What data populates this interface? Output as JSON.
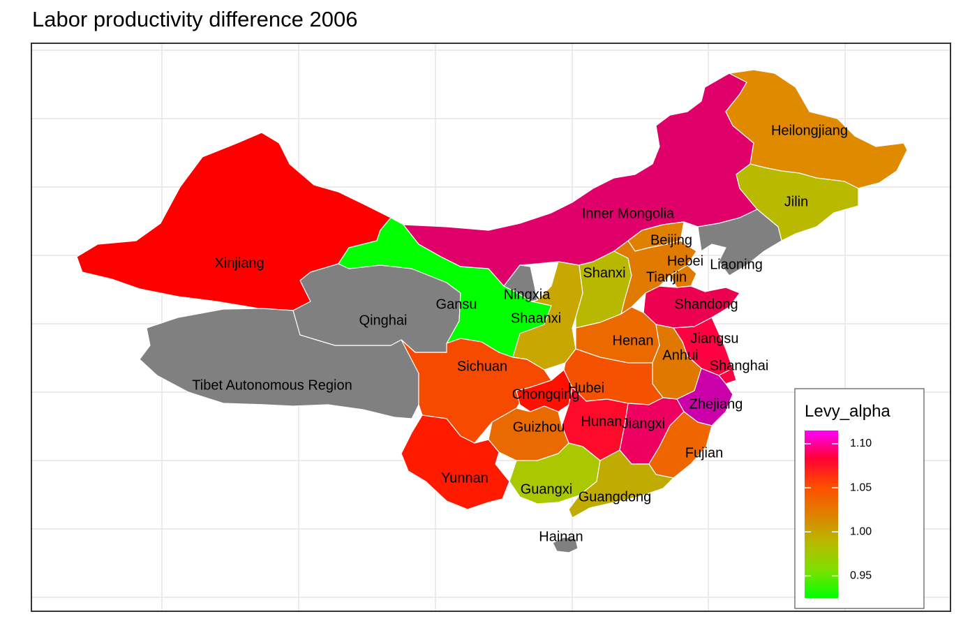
{
  "title": "Labor productivity difference 2006",
  "legend": {
    "title": "Levy_alpha",
    "ticks": [
      {
        "label": "1.10",
        "value": 1.1
      },
      {
        "label": "1.05",
        "value": 1.05
      },
      {
        "label": "1.00",
        "value": 1.0
      },
      {
        "label": "0.95",
        "value": 0.95
      }
    ],
    "range": [
      0.925,
      1.115
    ],
    "gradient": [
      "#ff00ff",
      "#ff0033",
      "#ff4d00",
      "#e08000",
      "#b8b800",
      "#7ee000",
      "#00ff00"
    ]
  },
  "no_data_color": "#808080",
  "regions": [
    {
      "name": "Xinjiang",
      "fill": "#ff0000"
    },
    {
      "name": "Tibet Autonomous Region",
      "fill": "#808080"
    },
    {
      "name": "Qinghai",
      "fill": "#808080"
    },
    {
      "name": "Gansu",
      "fill": "#00ff00"
    },
    {
      "name": "Inner Mongolia",
      "fill": "#e0006a"
    },
    {
      "name": "Heilongjiang",
      "fill": "#e08a00"
    },
    {
      "name": "Jilin",
      "fill": "#b9b900"
    },
    {
      "name": "Liaoning",
      "fill": "#808080"
    },
    {
      "name": "Ningxia",
      "fill": "#808080"
    },
    {
      "name": "Shaanxi",
      "fill": "#c8a800"
    },
    {
      "name": "Shanxi",
      "fill": "#b8b800"
    },
    {
      "name": "Beijing",
      "fill": "#e08000"
    },
    {
      "name": "Hebei",
      "fill": "#e07a00"
    },
    {
      "name": "Tianjin",
      "fill": "#e07a00"
    },
    {
      "name": "Shandong",
      "fill": "#ee0050"
    },
    {
      "name": "Henan",
      "fill": "#ea6a00"
    },
    {
      "name": "Jiangsu",
      "fill": "#ff0040"
    },
    {
      "name": "Anhui",
      "fill": "#e07800"
    },
    {
      "name": "Shanghai",
      "fill": "#ff0040"
    },
    {
      "name": "Zhejiang",
      "fill": "#cc00aa"
    },
    {
      "name": "Sichuan",
      "fill": "#f54a00"
    },
    {
      "name": "Chongqing",
      "fill": "#ff1000"
    },
    {
      "name": "Hubei",
      "fill": "#f55200"
    },
    {
      "name": "Hunan",
      "fill": "#ff0a2a"
    },
    {
      "name": "Jiangxi",
      "fill": "#ee0060"
    },
    {
      "name": "Guizhou",
      "fill": "#e86a00"
    },
    {
      "name": "Fujian",
      "fill": "#ee6600"
    },
    {
      "name": "Yunnan",
      "fill": "#ff1a00"
    },
    {
      "name": "Guangxi",
      "fill": "#aac800"
    },
    {
      "name": "Guangdong",
      "fill": "#c0ac00"
    },
    {
      "name": "Hainan",
      "fill": "#808080"
    }
  ]
}
